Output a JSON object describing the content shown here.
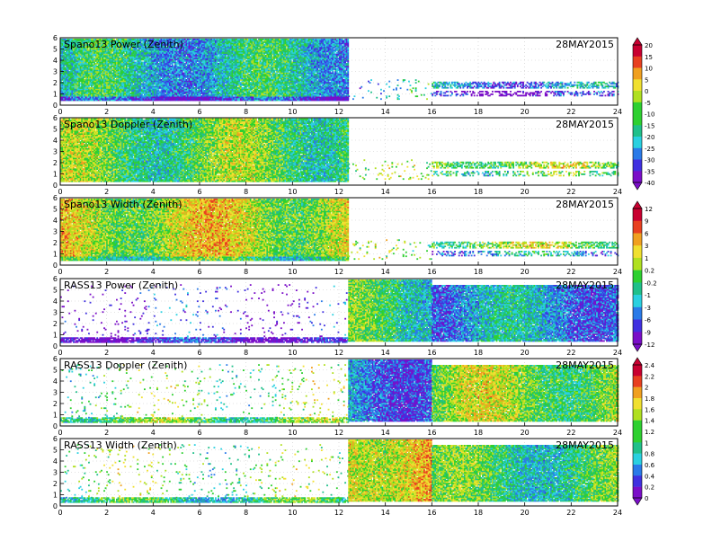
{
  "chart_data": [
    {
      "type": "heatmap",
      "title": "Spano13 Power (Zenith)",
      "date": "28MAY2015",
      "xlim": [
        0,
        24
      ],
      "ylim": [
        0,
        6
      ],
      "x_ticks": [
        "0",
        "2",
        "4",
        "6",
        "8",
        "10",
        "12",
        "14",
        "16",
        "18",
        "20",
        "22",
        "24"
      ],
      "y_ticks": [
        "0",
        "1",
        "2",
        "3",
        "4",
        "5",
        "6"
      ],
      "colorbar_group": 0,
      "regions": [
        {
          "x": [
            0,
            12.4
          ],
          "y": [
            0.4,
            5.9
          ],
          "level": 0.35,
          "density": 0.98
        },
        {
          "x": [
            0,
            12.4
          ],
          "y": [
            0.4,
            0.7
          ],
          "level": 0.12,
          "density": 1.0
        },
        {
          "x": [
            12.4,
            16
          ],
          "y": [
            0.5,
            2.2
          ],
          "level": 0.3,
          "density": 0.07
        },
        {
          "x": [
            16,
            24
          ],
          "y": [
            1.5,
            2.0
          ],
          "level": 0.25,
          "density": 0.6
        },
        {
          "x": [
            16,
            24
          ],
          "y": [
            0.8,
            1.2
          ],
          "level": 0.08,
          "density": 0.45
        }
      ]
    },
    {
      "type": "heatmap",
      "title": "Spano13 Doppler (Zenith)",
      "date": "28MAY2015",
      "xlim": [
        0,
        24
      ],
      "ylim": [
        0,
        6
      ],
      "x_ticks": [
        "0",
        "2",
        "4",
        "6",
        "8",
        "10",
        "12",
        "14",
        "16",
        "18",
        "20",
        "22",
        "24"
      ],
      "y_ticks": [
        "0",
        "1",
        "2",
        "3",
        "4",
        "5",
        "6"
      ],
      "colorbar_group": 0,
      "regions": [
        {
          "x": [
            0,
            12.4
          ],
          "y": [
            0.3,
            5.9
          ],
          "level": 0.5,
          "density": 0.98
        },
        {
          "x": [
            12.4,
            16
          ],
          "y": [
            0.5,
            2.2
          ],
          "level": 0.5,
          "density": 0.06
        },
        {
          "x": [
            16,
            24
          ],
          "y": [
            1.5,
            2.0
          ],
          "level": 0.55,
          "density": 0.6
        },
        {
          "x": [
            16,
            24
          ],
          "y": [
            0.8,
            1.2
          ],
          "level": 0.45,
          "density": 0.35
        }
      ]
    },
    {
      "type": "heatmap",
      "title": "Spano13 Width (Zenith)",
      "date": "28MAY2015",
      "xlim": [
        0,
        24
      ],
      "ylim": [
        0,
        6
      ],
      "x_ticks": [
        "0",
        "2",
        "4",
        "6",
        "8",
        "10",
        "12",
        "14",
        "16",
        "18",
        "20",
        "22",
        "24"
      ],
      "y_ticks": [
        "0",
        "1",
        "2",
        "3",
        "4",
        "5",
        "6"
      ],
      "colorbar_group": 1,
      "regions": [
        {
          "x": [
            0,
            12.4
          ],
          "y": [
            0.4,
            5.9
          ],
          "level": 0.62,
          "density": 0.98
        },
        {
          "x": [
            0,
            12.4
          ],
          "y": [
            0.4,
            0.7
          ],
          "level": 0.45,
          "density": 1.0
        },
        {
          "x": [
            12.4,
            16
          ],
          "y": [
            0.5,
            2.2
          ],
          "level": 0.5,
          "density": 0.06
        },
        {
          "x": [
            16,
            24
          ],
          "y": [
            1.5,
            2.0
          ],
          "level": 0.55,
          "density": 0.6
        },
        {
          "x": [
            16,
            24
          ],
          "y": [
            0.8,
            1.2
          ],
          "level": 0.3,
          "density": 0.4
        }
      ]
    },
    {
      "type": "heatmap",
      "title": "RASS13 Power (Zenith)",
      "date": "28MAY2015",
      "xlim": [
        0,
        24
      ],
      "ylim": [
        0,
        6
      ],
      "x_ticks": [
        "0",
        "2",
        "4",
        "6",
        "8",
        "10",
        "12",
        "14",
        "16",
        "18",
        "20",
        "22",
        "24"
      ],
      "y_ticks": [
        "0",
        "1",
        "2",
        "3",
        "4",
        "5",
        "6"
      ],
      "colorbar_group": 1,
      "regions": [
        {
          "x": [
            0,
            12.4
          ],
          "y": [
            0.3,
            0.7
          ],
          "level": 0.08,
          "density": 0.85
        },
        {
          "x": [
            0,
            12.4
          ],
          "y": [
            0.7,
            5.5
          ],
          "level": 0.1,
          "density": 0.03
        },
        {
          "x": [
            12.4,
            16
          ],
          "y": [
            0.4,
            5.9
          ],
          "level": 0.45,
          "density": 0.98
        },
        {
          "x": [
            16,
            24
          ],
          "y": [
            0.4,
            5.4
          ],
          "level": 0.28,
          "density": 0.97
        }
      ]
    },
    {
      "type": "heatmap",
      "title": "RASS13 Doppler (Zenith)",
      "date": "28MAY2015",
      "xlim": [
        0,
        24
      ],
      "ylim": [
        0,
        6
      ],
      "x_ticks": [
        "0",
        "2",
        "4",
        "6",
        "8",
        "10",
        "12",
        "14",
        "16",
        "18",
        "20",
        "22",
        "24"
      ],
      "y_ticks": [
        "0",
        "1",
        "2",
        "3",
        "4",
        "5",
        "6"
      ],
      "colorbar_group": 2,
      "regions": [
        {
          "x": [
            0,
            12.4
          ],
          "y": [
            0.3,
            0.7
          ],
          "level": 0.5,
          "density": 0.85
        },
        {
          "x": [
            0,
            12.4
          ],
          "y": [
            0.7,
            5.5
          ],
          "level": 0.5,
          "density": 0.04
        },
        {
          "x": [
            12.4,
            16
          ],
          "y": [
            0.4,
            5.9
          ],
          "level": 0.25,
          "density": 0.98
        },
        {
          "x": [
            16,
            24
          ],
          "y": [
            0.4,
            5.4
          ],
          "level": 0.55,
          "density": 0.97
        }
      ]
    },
    {
      "type": "heatmap",
      "title": "RASS13 Width (Zenith)",
      "date": "28MAY2015",
      "xlim": [
        0,
        24
      ],
      "ylim": [
        0,
        6
      ],
      "x_ticks": [
        "0",
        "2",
        "4",
        "6",
        "8",
        "10",
        "12",
        "14",
        "16",
        "18",
        "20",
        "22",
        "24"
      ],
      "y_ticks": [
        "0",
        "1",
        "2",
        "3",
        "4",
        "5",
        "6"
      ],
      "colorbar_group": 2,
      "regions": [
        {
          "x": [
            0,
            12.4
          ],
          "y": [
            0.3,
            0.7
          ],
          "level": 0.42,
          "density": 0.85
        },
        {
          "x": [
            0,
            12.4
          ],
          "y": [
            0.7,
            5.5
          ],
          "level": 0.5,
          "density": 0.04
        },
        {
          "x": [
            12.4,
            16
          ],
          "y": [
            0.4,
            5.9
          ],
          "level": 0.72,
          "density": 0.98
        },
        {
          "x": [
            16,
            24
          ],
          "y": [
            0.4,
            5.4
          ],
          "level": 0.45,
          "density": 0.97
        }
      ]
    }
  ],
  "colorbars": [
    {
      "labels": [
        "20",
        "15",
        "10",
        "5",
        "0",
        "-5",
        "-10",
        "-15",
        "-20",
        "-25",
        "-30",
        "-35",
        "-40"
      ]
    },
    {
      "labels": [
        "12",
        "9",
        "6",
        "3",
        "1",
        "0.2",
        "-0.2",
        "-1",
        "-3",
        "-6",
        "-9",
        "-12"
      ]
    },
    {
      "labels": [
        "2.4",
        "2.2",
        "2",
        "1.8",
        "1.6",
        "1.4",
        "1.2",
        "1",
        "0.8",
        "0.6",
        "0.4",
        "0.2",
        "0"
      ]
    }
  ],
  "palette": [
    "#7a0ec8",
    "#4030e0",
    "#2a7ae8",
    "#2ad0e0",
    "#20c08a",
    "#2ed030",
    "#b0e020",
    "#f0e030",
    "#f0a020",
    "#e84020",
    "#c80030"
  ]
}
